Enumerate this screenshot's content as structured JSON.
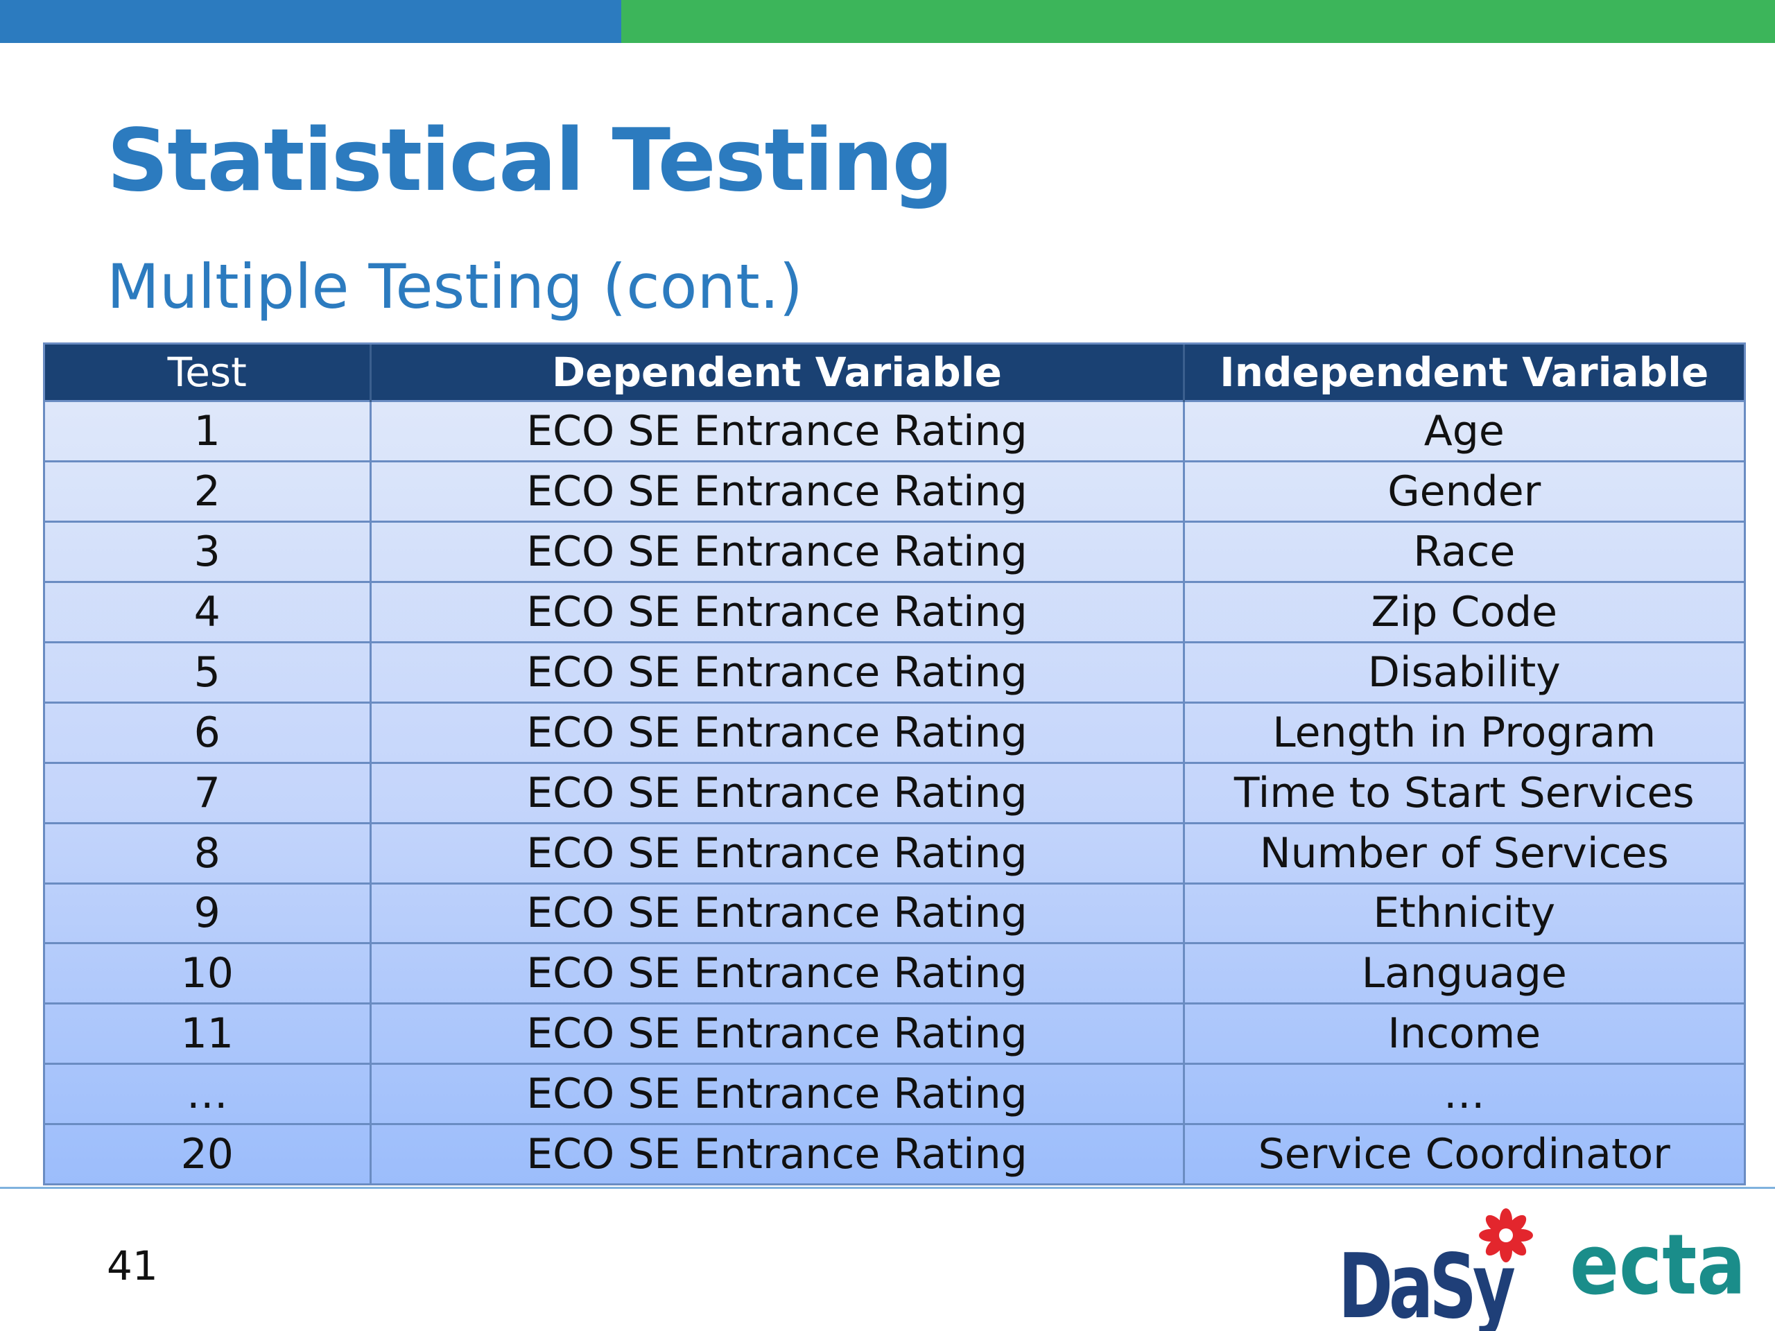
{
  "slide": {
    "title": "Statistical Testing",
    "subtitle": "Multiple Testing (cont.)",
    "page_number": "41"
  },
  "table": {
    "headers": [
      "Test",
      "Dependent Variable",
      "Independent Variable"
    ],
    "rows": [
      [
        "1",
        "ECO SE Entrance Rating",
        "Age"
      ],
      [
        "2",
        "ECO SE Entrance Rating",
        "Gender"
      ],
      [
        "3",
        "ECO SE Entrance Rating",
        "Race"
      ],
      [
        "4",
        "ECO SE Entrance Rating",
        "Zip Code"
      ],
      [
        "5",
        "ECO SE Entrance Rating",
        "Disability"
      ],
      [
        "6",
        "ECO SE Entrance Rating",
        "Length in Program"
      ],
      [
        "7",
        "ECO SE Entrance Rating",
        "Time to Start Services"
      ],
      [
        "8",
        "ECO SE Entrance Rating",
        "Number of Services"
      ],
      [
        "9",
        "ECO SE Entrance Rating",
        "Ethnicity"
      ],
      [
        "10",
        "ECO SE Entrance Rating",
        "Language"
      ],
      [
        "11",
        "ECO SE Entrance Rating",
        "Income"
      ],
      [
        "…",
        "ECO SE Entrance Rating",
        "…"
      ],
      [
        "20",
        "ECO SE Entrance Rating",
        "Service Coordinator"
      ]
    ]
  },
  "logos": {
    "dasy": "DaSy",
    "ecta": "ecta"
  },
  "colors": {
    "accent_blue": "#2c7bbf",
    "accent_green": "#3cb55a",
    "header_navy": "#1a4173",
    "dasy_navy": "#1f3f78",
    "flower_red": "#e3262d",
    "ecta_teal": "#1a8d8a"
  }
}
